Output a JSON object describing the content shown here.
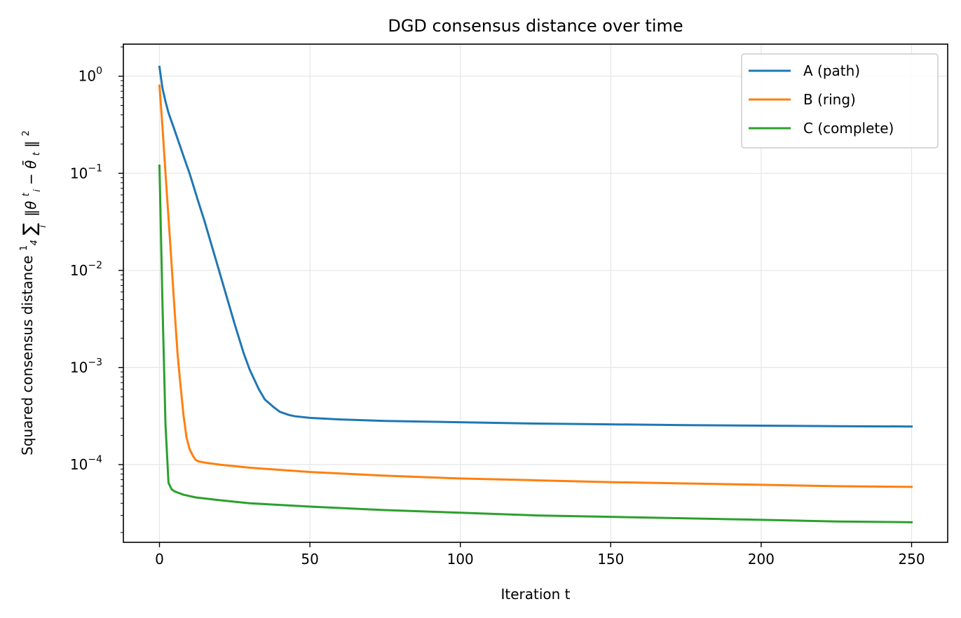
{
  "chart_data": {
    "type": "line",
    "title": "DGD consensus distance over time",
    "xlabel": "Iteration t",
    "ylabel": "Squared consensus distance",
    "ylabel_formula": {
      "frac_num": "1",
      "frac_den": "4",
      "sum": "∑",
      "sum_sub": "i",
      "expr": "‖θ",
      "expr_sup": "t",
      "expr_sub": "i",
      "minus": " − ",
      "theta_bar": "θ̄",
      "theta_sub": "t",
      "close": "‖",
      "close_sup": "2"
    },
    "xlim": [
      -12,
      262
    ],
    "ylim_log10": [
      -4.8,
      0.33
    ],
    "y_scale": "log",
    "grid": true,
    "legend_position": "top-right",
    "x_ticks": [
      0,
      50,
      100,
      150,
      200,
      250
    ],
    "y_ticks": [
      {
        "exp": 0,
        "base": "10",
        "sup": "0"
      },
      {
        "exp": -1,
        "base": "10",
        "sup": "−1"
      },
      {
        "exp": -2,
        "base": "10",
        "sup": "−2"
      },
      {
        "exp": -3,
        "base": "10",
        "sup": "−3"
      },
      {
        "exp": -4,
        "base": "10",
        "sup": "−4"
      }
    ],
    "series": [
      {
        "name": "A (path)",
        "color": "#1f77b4",
        "points": [
          [
            0,
            1.25
          ],
          [
            1,
            0.75
          ],
          [
            2,
            0.55
          ],
          [
            3,
            0.42
          ],
          [
            5,
            0.28
          ],
          [
            8,
            0.15
          ],
          [
            10,
            0.1
          ],
          [
            13,
            0.05
          ],
          [
            15,
            0.032
          ],
          [
            20,
            0.0095
          ],
          [
            25,
            0.0028
          ],
          [
            28,
            0.0014
          ],
          [
            30,
            0.00095
          ],
          [
            33,
            0.0006
          ],
          [
            35,
            0.00047
          ],
          [
            38,
            0.00039
          ],
          [
            40,
            0.00035
          ],
          [
            43,
            0.000325
          ],
          [
            45,
            0.000315
          ],
          [
            50,
            0.000303
          ],
          [
            60,
            0.000292
          ],
          [
            75,
            0.000282
          ],
          [
            100,
            0.000273
          ],
          [
            125,
            0.000265
          ],
          [
            150,
            0.00026
          ],
          [
            175,
            0.000255
          ],
          [
            200,
            0.000252
          ],
          [
            225,
            0.000249
          ],
          [
            250,
            0.000247
          ]
        ]
      },
      {
        "name": "B (ring)",
        "color": "#ff7f0e",
        "points": [
          [
            0,
            0.8
          ],
          [
            1,
            0.3
          ],
          [
            2,
            0.1
          ],
          [
            3,
            0.035
          ],
          [
            4,
            0.012
          ],
          [
            5,
            0.004
          ],
          [
            6,
            0.0014
          ],
          [
            7,
            0.00065
          ],
          [
            8,
            0.00032
          ],
          [
            9,
            0.00019
          ],
          [
            10,
            0.000145
          ],
          [
            11,
            0.000125
          ],
          [
            12,
            0.000112
          ],
          [
            13,
            0.000108
          ],
          [
            15,
            0.000105
          ],
          [
            20,
            0.0001
          ],
          [
            30,
            9.3e-05
          ],
          [
            50,
            8.4e-05
          ],
          [
            75,
            7.7e-05
          ],
          [
            100,
            7.2e-05
          ],
          [
            125,
            6.9e-05
          ],
          [
            150,
            6.6e-05
          ],
          [
            175,
            6.4e-05
          ],
          [
            200,
            6.2e-05
          ],
          [
            225,
            6e-05
          ],
          [
            250,
            5.9e-05
          ]
        ]
      },
      {
        "name": "C (complete)",
        "color": "#2ca02c",
        "points": [
          [
            0,
            0.12
          ],
          [
            1,
            0.0045
          ],
          [
            2,
            0.00026
          ],
          [
            3,
            6.5e-05
          ],
          [
            4,
            5.6e-05
          ],
          [
            5,
            5.3e-05
          ],
          [
            8,
            4.9e-05
          ],
          [
            12,
            4.6e-05
          ],
          [
            20,
            4.3e-05
          ],
          [
            30,
            4e-05
          ],
          [
            50,
            3.7e-05
          ],
          [
            75,
            3.4e-05
          ],
          [
            100,
            3.2e-05
          ],
          [
            125,
            3e-05
          ],
          [
            150,
            2.9e-05
          ],
          [
            175,
            2.8e-05
          ],
          [
            200,
            2.7e-05
          ],
          [
            225,
            2.6e-05
          ],
          [
            250,
            2.55e-05
          ]
        ]
      }
    ]
  }
}
